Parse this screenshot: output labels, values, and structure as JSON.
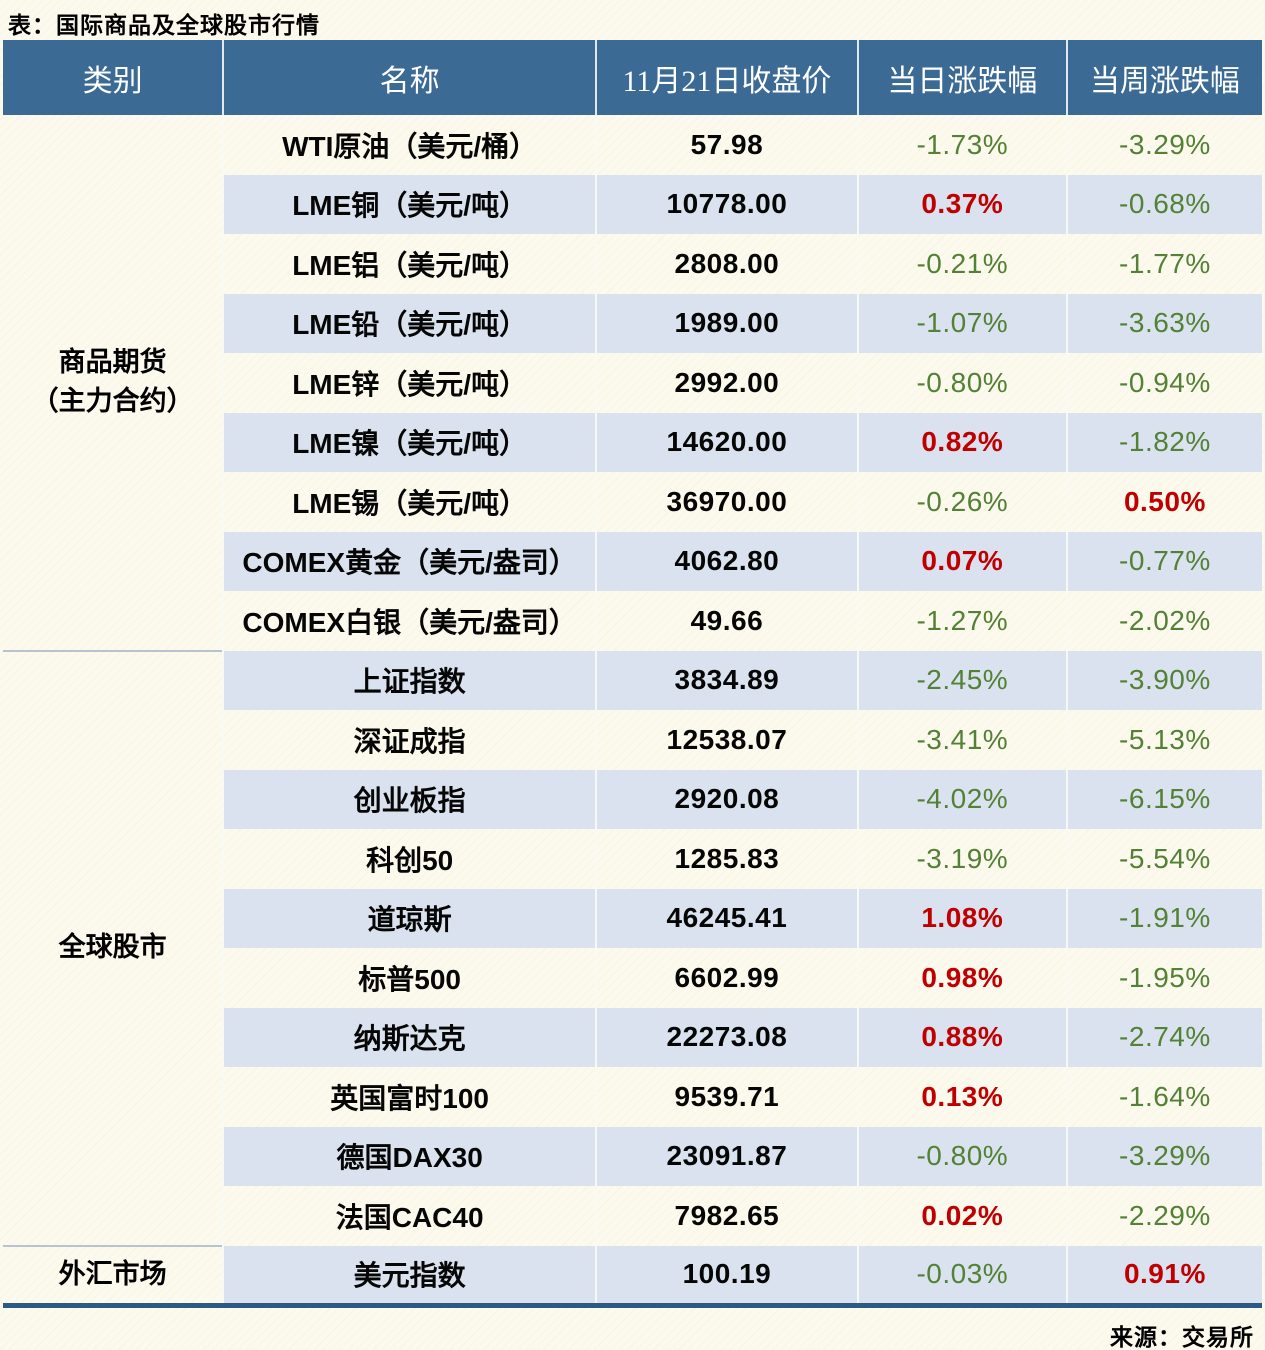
{
  "page": {
    "title": "表：国际商品及全球股市行情",
    "source": "来源：交易所"
  },
  "colors": {
    "up_red": "#c00000",
    "down_green": "#538135",
    "header_bg": "#3b6a95",
    "header_text": "#ffffff",
    "stripe_blue": "#d9e2ee",
    "page_cream": "#fcfaef",
    "table_bottom_border": "#2d5a82"
  },
  "chart_data": {
    "type": "table",
    "title": "表：国际商品及全球股市行情",
    "columns": [
      "类别",
      "名称",
      "11月21日收盘价",
      "当日涨跌幅",
      "当周涨跌幅"
    ],
    "value_date": "11月21日",
    "color_convention": "red = rise (up), green = fall (down)",
    "sections": [
      {
        "category": "商品期货（主力合约）",
        "category_lines": [
          "商品期货",
          "（主力合约）"
        ],
        "rows": [
          {
            "name": "WTI原油（美元/桶）",
            "close": "57.98",
            "day": "-1.73%",
            "week": "-3.29%"
          },
          {
            "name": "LME铜（美元/吨）",
            "close": "10778.00",
            "day": "0.37%",
            "week": "-0.68%"
          },
          {
            "name": "LME铝（美元/吨）",
            "close": "2808.00",
            "day": "-0.21%",
            "week": "-1.77%"
          },
          {
            "name": "LME铅（美元/吨）",
            "close": "1989.00",
            "day": "-1.07%",
            "week": "-3.63%"
          },
          {
            "name": "LME锌（美元/吨）",
            "close": "2992.00",
            "day": "-0.80%",
            "week": "-0.94%"
          },
          {
            "name": "LME镍（美元/吨）",
            "close": "14620.00",
            "day": "0.82%",
            "week": "-1.82%"
          },
          {
            "name": "LME锡（美元/吨）",
            "close": "36970.00",
            "day": "-0.26%",
            "week": "0.50%"
          },
          {
            "name": "COMEX黄金（美元/盎司）",
            "close": "4062.80",
            "day": "0.07%",
            "week": "-0.77%"
          },
          {
            "name": "COMEX白银（美元/盎司）",
            "close": "49.66",
            "day": "-1.27%",
            "week": "-2.02%"
          }
        ]
      },
      {
        "category": "全球股市",
        "category_lines": [
          "全球股市"
        ],
        "rows": [
          {
            "name": "上证指数",
            "close": "3834.89",
            "day": "-2.45%",
            "week": "-3.90%"
          },
          {
            "name": "深证成指",
            "close": "12538.07",
            "day": "-3.41%",
            "week": "-5.13%"
          },
          {
            "name": "创业板指",
            "close": "2920.08",
            "day": "-4.02%",
            "week": "-6.15%"
          },
          {
            "name": "科创50",
            "close": "1285.83",
            "day": "-3.19%",
            "week": "-5.54%"
          },
          {
            "name": "道琼斯",
            "close": "46245.41",
            "day": "1.08%",
            "week": "-1.91%"
          },
          {
            "name": "标普500",
            "close": "6602.99",
            "day": "0.98%",
            "week": "-1.95%"
          },
          {
            "name": "纳斯达克",
            "close": "22273.08",
            "day": "0.88%",
            "week": "-2.74%"
          },
          {
            "name": "英国富时100",
            "close": "9539.71",
            "day": "0.13%",
            "week": "-1.64%"
          },
          {
            "name": "德国DAX30",
            "close": "23091.87",
            "day": "-0.80%",
            "week": "-3.29%"
          },
          {
            "name": "法国CAC40",
            "close": "7982.65",
            "day": "0.02%",
            "week": "-2.29%"
          }
        ]
      },
      {
        "category": "外汇市场",
        "category_lines": [
          "外汇市场"
        ],
        "rows": [
          {
            "name": "美元指数",
            "close": "100.19",
            "day": "-0.03%",
            "week": "0.91%"
          }
        ]
      }
    ]
  }
}
